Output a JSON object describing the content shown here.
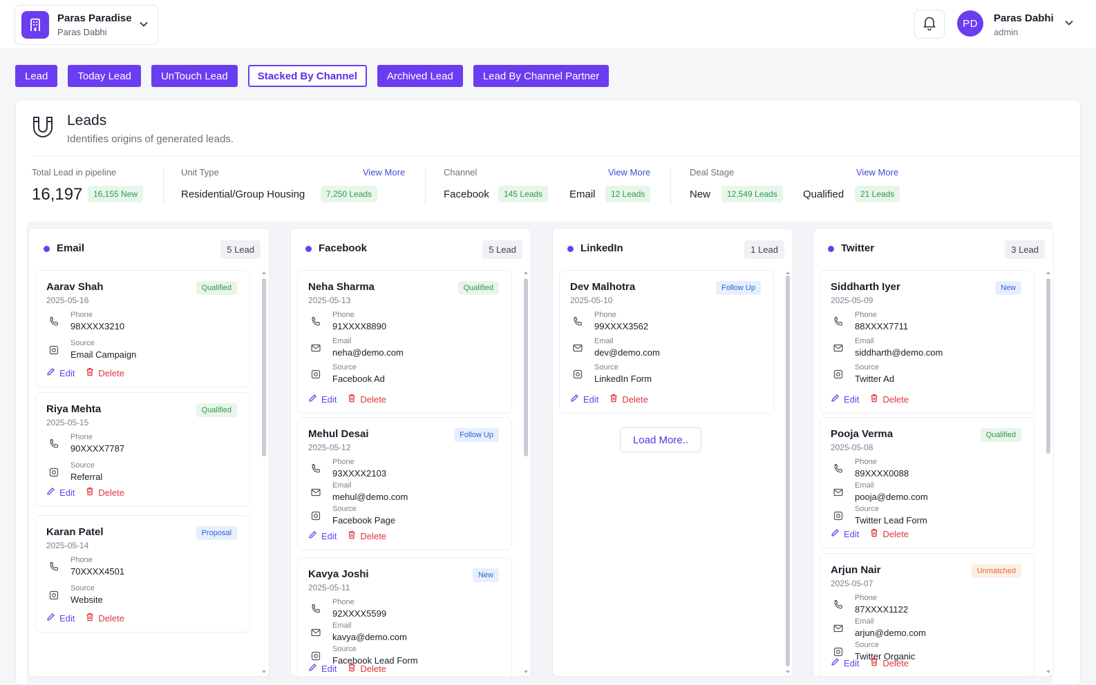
{
  "header": {
    "project_name": "Paras Paradise",
    "project_owner": "Paras Dabhi",
    "user_initials": "PD",
    "user_name": "Paras Dabhi",
    "user_role": "admin"
  },
  "tabs": [
    {
      "label": "Lead",
      "active": false
    },
    {
      "label": "Today Lead",
      "active": false
    },
    {
      "label": "UnTouch Lead",
      "active": false
    },
    {
      "label": "Stacked By Channel",
      "active": true
    },
    {
      "label": "Archived Lead",
      "active": false
    },
    {
      "label": "Lead By Channel Partner",
      "active": false
    }
  ],
  "leads": {
    "title": "Leads",
    "subtitle": "Identifies origins of generated leads."
  },
  "stats": {
    "total": {
      "label": "Total Lead in pipeline",
      "value": "16,197",
      "new_pill": "16,155 New"
    },
    "unit_type": {
      "label": "Unit Type",
      "view_more": "View More",
      "name": "Residential/Group Housing",
      "pill": "7,250 Leads"
    },
    "channel": {
      "label": "Channel",
      "view_more": "View More",
      "items": [
        {
          "name": "Facebook",
          "pill": "145 Leads"
        },
        {
          "name": "Email",
          "pill": "12 Leads"
        }
      ]
    },
    "deal_stage": {
      "label": "Deal Stage",
      "view_more": "View More",
      "items": [
        {
          "name": "New",
          "pill": "12,549 Leads"
        },
        {
          "name": "Qualified",
          "pill": "21 Leads"
        }
      ]
    }
  },
  "labels": {
    "phone": "Phone",
    "email": "Email",
    "source": "Source",
    "edit": "Edit",
    "delete": "Delete",
    "load_more": "Load More.."
  },
  "colors": {
    "accent": "#6b3df0",
    "success": "#2f9a4a",
    "info": "#2c63d6",
    "danger": "#e0343c",
    "warning": "#de6a2a"
  },
  "columns": [
    {
      "title": "Email",
      "count": "5 Lead",
      "cards": [
        {
          "name": "Aarav Shah",
          "date": "2025-05-16",
          "status": "Qualified",
          "phone": "98XXXX3210",
          "source": "Email Campaign"
        },
        {
          "name": "Riya Mehta",
          "date": "2025-05-15",
          "status": "Qualified",
          "phone": "90XXXX7787",
          "source": "Referral"
        },
        {
          "name": "Karan Patel",
          "date": "2025-05-14",
          "status": "Proposal",
          "phone": "70XXXX4501",
          "source": "Website"
        }
      ]
    },
    {
      "title": "Facebook",
      "count": "5 Lead",
      "cards": [
        {
          "name": "Neha Sharma",
          "date": "2025-05-13",
          "status": "Qualified",
          "phone": "91XXXX8890",
          "email": "neha@demo.com",
          "source": "Facebook Ad"
        },
        {
          "name": "Mehul Desai",
          "date": "2025-05-12",
          "status": "Follow Up",
          "phone": "93XXXX2103",
          "email": "mehul@demo.com",
          "source": "Facebook Page"
        },
        {
          "name": "Kavya Joshi",
          "date": "2025-05-11",
          "status": "New",
          "phone": "92XXXX5599",
          "email": "kavya@demo.com",
          "source": "Facebook Lead Form"
        }
      ]
    },
    {
      "title": "LinkedIn",
      "count": "1 Lead",
      "cards": [
        {
          "name": "Dev Malhotra",
          "date": "2025-05-10",
          "status": "Follow Up",
          "phone": "99XXXX3562",
          "email": "dev@demo.com",
          "source": "LinkedIn Form"
        }
      ]
    },
    {
      "title": "Twitter",
      "count": "3 Lead",
      "cards": [
        {
          "name": "Siddharth Iyer",
          "date": "2025-05-09",
          "status": "New",
          "phone": "88XXXX7711",
          "email": "siddharth@demo.com",
          "source": "Twitter Ad"
        },
        {
          "name": "Pooja Verma",
          "date": "2025-05-08",
          "status": "Qualified",
          "phone": "89XXXX0088",
          "email": "pooja@demo.com",
          "source": "Twitter Lead Form"
        },
        {
          "name": "Arjun Nair",
          "date": "2025-05-07",
          "status": "Unmatched",
          "phone": "87XXXX1122",
          "email": "arjun@demo.com",
          "source": "Twitter Organic"
        }
      ]
    }
  ]
}
